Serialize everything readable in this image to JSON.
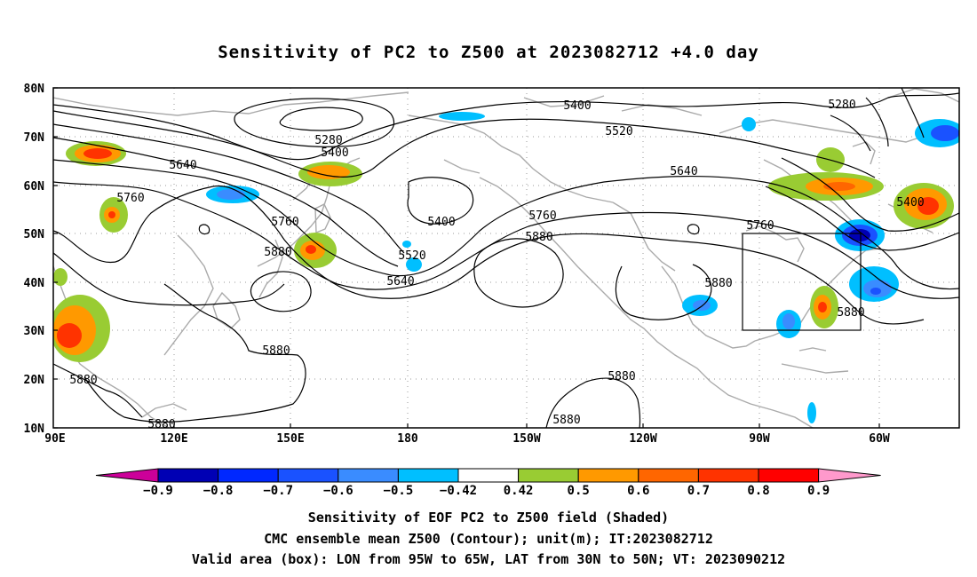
{
  "title": "Sensitivity of PC2 to Z500 at 2023082712 +4.0 day",
  "lat_labels": [
    "80N",
    "70N",
    "60N",
    "50N",
    "40N",
    "30N",
    "20N",
    "10N"
  ],
  "lon_labels": [
    "90E",
    "120E",
    "150E",
    "180",
    "150W",
    "120W",
    "90W",
    "60W"
  ],
  "contour_labels": {
    "c5400a": "5400",
    "c5280a": "5280",
    "c5400b": "5400",
    "c5280b": "5280",
    "c5520": "5520",
    "c5640a": "5640",
    "c5640b": "5640",
    "c5760a": "5760",
    "c5760b": "5760",
    "c5760c": "5760",
    "c5760d": "5760",
    "c5880a": "5880",
    "c5880b": "5880",
    "c5880c": "5880",
    "c5880d": "5880",
    "c5880e": "5880",
    "c5880f": "5880",
    "c5880g": "5880",
    "c5880h": "5880",
    "c5880i": "5880",
    "c5400c": "5400",
    "c5520b": "5520",
    "c5640c": "5640",
    "c5400d": "5400"
  },
  "colorbar": {
    "labels": [
      "−0.9",
      "−0.8",
      "−0.7",
      "−0.6",
      "−0.5",
      "−0.42",
      "0.42",
      "0.5",
      "0.6",
      "0.7",
      "0.8",
      "0.9"
    ],
    "colors": [
      "#cc0099",
      "#0000b4",
      "#0028ff",
      "#1a52ff",
      "#3a8cff",
      "#00bfff",
      "#ffffff",
      "#99cc33",
      "#ff9900",
      "#ff6600",
      "#ff3300",
      "#ff0000",
      "#ff99cc"
    ]
  },
  "captions": {
    "line1": "Sensitivity of EOF PC2 to Z500 field (Shaded)",
    "line2": "CMC ensemble mean Z500 (Contour); unit(m); IT:2023082712",
    "line3": "Valid area (box): LON from 95W to 65W, LAT from 30N to 50N; VT: 2023090212"
  }
}
